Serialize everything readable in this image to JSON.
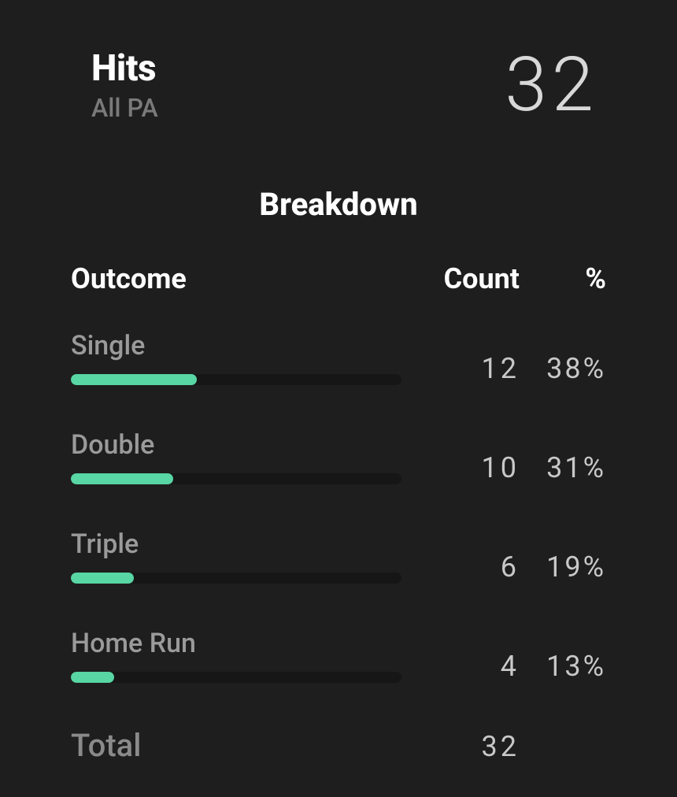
{
  "header": {
    "title": "Hits",
    "subtitle": "All PA",
    "value": "32"
  },
  "section_title": "Breakdown",
  "columns": {
    "outcome": "Outcome",
    "count": "Count",
    "pct": "%"
  },
  "accent_color": "#58d6a4",
  "track_color": "#161616",
  "bg_color": "#1e1e1e",
  "rows": [
    {
      "label": "Single",
      "count": "12",
      "pct": "38%",
      "bar_pct": 38
    },
    {
      "label": "Double",
      "count": "10",
      "pct": "31%",
      "bar_pct": 31
    },
    {
      "label": "Triple",
      "count": "6",
      "pct": "19%",
      "bar_pct": 19
    },
    {
      "label": "Home Run",
      "count": "4",
      "pct": "13%",
      "bar_pct": 13
    }
  ],
  "total": {
    "label": "Total",
    "count": "32"
  }
}
